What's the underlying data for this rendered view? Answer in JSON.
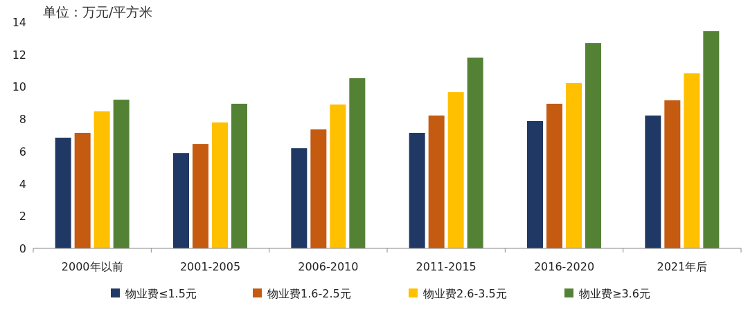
{
  "chart_data": {
    "type": "bar",
    "title": "单位：万元/平方米",
    "categories": [
      "2000年以前",
      "2001-2005",
      "2006-2010",
      "2011-2015",
      "2016-2020",
      "2021年后"
    ],
    "series": [
      {
        "name": "物业费≤1.5元",
        "color": "#203864",
        "values": [
          6.85,
          5.9,
          6.2,
          7.15,
          7.88,
          8.22
        ]
      },
      {
        "name": "物业费1.6-2.5元",
        "color": "#c55a11",
        "values": [
          7.15,
          6.46,
          7.36,
          8.22,
          8.95,
          9.16
        ]
      },
      {
        "name": "物业费2.6-3.5元",
        "color": "#ffc000",
        "values": [
          8.48,
          7.79,
          8.9,
          9.67,
          10.23,
          10.83
        ]
      },
      {
        "name": "物业费≥3.6元",
        "color": "#548235",
        "values": [
          9.2,
          8.95,
          10.53,
          11.8,
          12.71,
          13.44
        ]
      }
    ],
    "ylim": [
      0,
      14
    ],
    "yticks": [
      0,
      2,
      4,
      6,
      8,
      10,
      12,
      14
    ],
    "grid": false,
    "legend": "bottom"
  }
}
